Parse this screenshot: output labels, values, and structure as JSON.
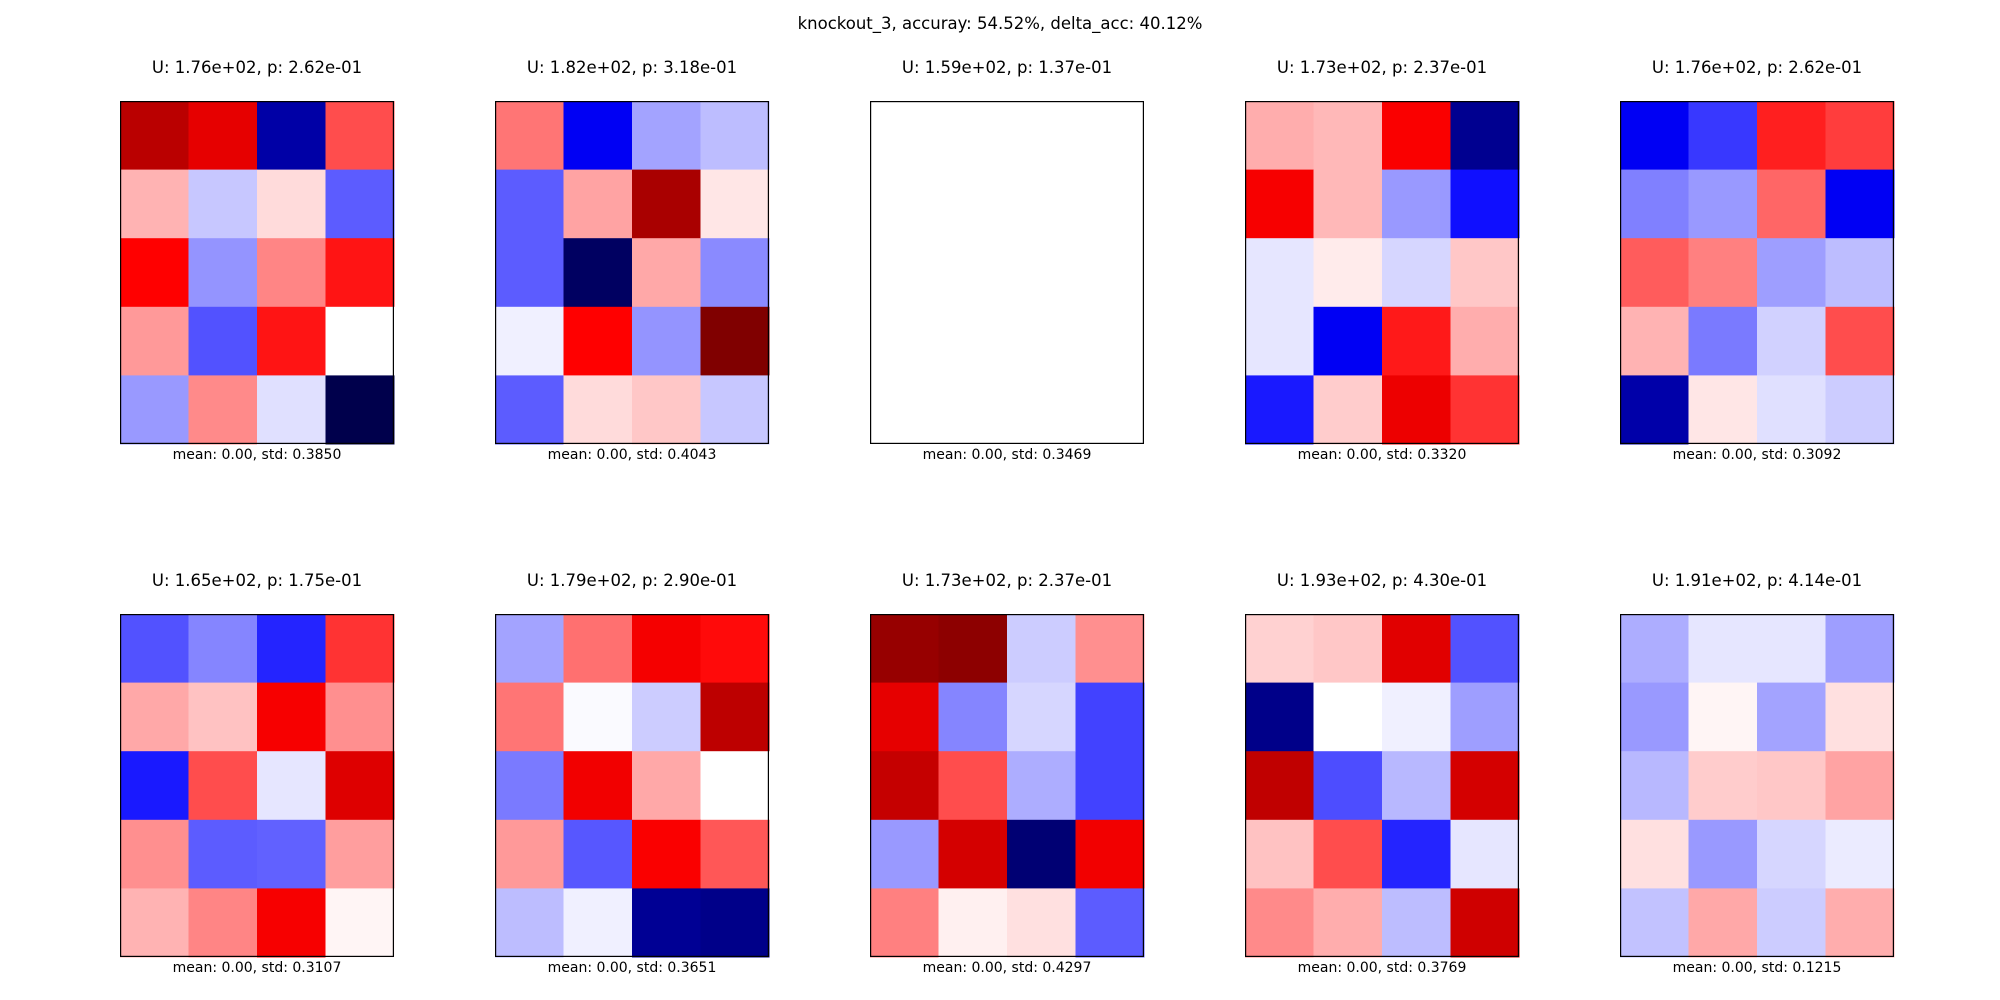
{
  "figure": {
    "suptitle": "knockout_3, accuray: 54.52%, delta_acc: 40.12%"
  },
  "colormap": {
    "name": "seismic",
    "negative": "#0000ff",
    "zero": "#ffffff",
    "positive": "#ff0000"
  },
  "chart_data": [
    {
      "type": "heatmap",
      "title": "U: 1.76e+02, p: 2.62e-01",
      "xlabel": "mean: 0.00, std: 0.3850",
      "rows": 5,
      "cols": 4,
      "values": [
        [
          0.77,
          0.6,
          -0.75,
          0.35
        ],
        [
          0.15,
          -0.11,
          0.07,
          -0.32
        ],
        [
          0.5,
          -0.21,
          0.24,
          0.46
        ],
        [
          0.2,
          -0.34,
          0.46,
          0.0
        ],
        [
          -0.2,
          0.23,
          -0.06,
          -1.0
        ]
      ]
    },
    {
      "type": "heatmap",
      "title": "U: 1.82e+02, p: 3.18e-01",
      "xlabel": "mean: 0.00, std: 0.4043",
      "rows": 5,
      "cols": 4,
      "values": [
        [
          0.27,
          -0.53,
          -0.18,
          -0.13
        ],
        [
          -0.32,
          0.18,
          0.84,
          0.05
        ],
        [
          -0.32,
          -0.94,
          0.17,
          -0.23
        ],
        [
          -0.03,
          0.5,
          -0.21,
          1.0
        ],
        [
          -0.32,
          0.07,
          0.11,
          -0.11
        ]
      ]
    },
    {
      "type": "heatmap",
      "title": "U: 1.59e+02, p: 1.37e-01",
      "xlabel": "mean: 0.00, std: 0.3469",
      "rows": 5,
      "cols": 4,
      "values": [
        [
          0.0,
          0.0,
          0.0,
          0.0
        ],
        [
          0.0,
          0.0,
          0.0,
          0.0
        ],
        [
          0.0,
          0.0,
          0.0,
          0.0
        ],
        [
          0.0,
          0.0,
          0.0,
          0.0
        ],
        [
          0.0,
          0.0,
          0.0,
          0.0
        ]
      ]
    },
    {
      "type": "heatmap",
      "title": "U: 1.73e+02, p: 2.37e-01",
      "xlabel": "mean: 0.00, std: 0.3320",
      "rows": 5,
      "cols": 4,
      "values": [
        [
          0.16,
          0.14,
          0.52,
          -0.81
        ],
        [
          0.53,
          0.14,
          -0.2,
          -0.47
        ],
        [
          -0.05,
          0.04,
          -0.08,
          0.11
        ],
        [
          -0.05,
          -0.53,
          0.45,
          0.16
        ],
        [
          -0.45,
          0.1,
          0.57,
          0.4
        ]
      ]
    },
    {
      "type": "heatmap",
      "title": "U: 1.76e+02, p: 2.62e-01",
      "xlabel": "mean: 0.00, std: 0.3092",
      "rows": 5,
      "cols": 4,
      "values": [
        [
          -0.53,
          -0.39,
          0.44,
          0.38
        ],
        [
          -0.25,
          -0.2,
          0.3,
          -0.53
        ],
        [
          0.32,
          0.25,
          -0.19,
          -0.13
        ],
        [
          0.15,
          -0.26,
          -0.09,
          0.35
        ],
        [
          -0.74,
          0.05,
          -0.06,
          -0.1
        ]
      ]
    },
    {
      "type": "heatmap",
      "title": "U: 1.65e+02, p: 1.75e-01",
      "xlabel": "mean: 0.00, std: 0.3107",
      "rows": 5,
      "cols": 4,
      "values": [
        [
          -0.34,
          -0.24,
          -0.43,
          0.4
        ],
        [
          0.17,
          0.12,
          0.53,
          0.22
        ],
        [
          -0.45,
          0.35,
          -0.05,
          0.63
        ],
        [
          0.22,
          -0.32,
          -0.31,
          0.19
        ],
        [
          0.15,
          0.24,
          0.53,
          0.02
        ]
      ]
    },
    {
      "type": "heatmap",
      "title": "U: 1.79e+02, p: 2.90e-01",
      "xlabel": "mean: 0.00, std: 0.3651",
      "rows": 5,
      "cols": 4,
      "values": [
        [
          -0.18,
          0.28,
          0.54,
          0.48
        ],
        [
          0.27,
          -0.01,
          -0.1,
          0.76
        ],
        [
          -0.26,
          0.55,
          0.17,
          0.0
        ],
        [
          0.2,
          -0.33,
          0.52,
          0.33
        ],
        [
          -0.13,
          -0.03,
          -0.8,
          -0.83
        ]
      ]
    },
    {
      "type": "heatmap",
      "title": "U: 1.73e+02, p: 2.37e-01",
      "xlabel": "mean: 0.00, std: 0.4297",
      "rows": 5,
      "cols": 4,
      "values": [
        [
          0.91,
          0.95,
          -0.1,
          0.22
        ],
        [
          0.6,
          -0.24,
          -0.08,
          -0.37
        ],
        [
          0.73,
          0.35,
          -0.16,
          -0.37
        ],
        [
          -0.2,
          0.67,
          -0.89,
          0.55
        ],
        [
          0.25,
          0.03,
          0.06,
          -0.32
        ]
      ]
    },
    {
      "type": "heatmap",
      "title": "U: 1.93e+02, p: 4.30e-01",
      "xlabel": "mean: 0.00, std: 0.3769",
      "rows": 5,
      "cols": 4,
      "values": [
        [
          0.09,
          0.11,
          0.62,
          -0.34
        ],
        [
          -0.83,
          0.0,
          -0.03,
          -0.19
        ],
        [
          0.75,
          -0.35,
          -0.14,
          0.67
        ],
        [
          0.12,
          0.35,
          -0.43,
          -0.05
        ],
        [
          0.23,
          0.16,
          -0.13,
          0.69
        ]
      ]
    },
    {
      "type": "heatmap",
      "title": "U: 1.91e+02, p: 4.14e-01",
      "xlabel": "mean: 0.00, std: 0.1215",
      "rows": 5,
      "cols": 4,
      "values": [
        [
          -0.16,
          -0.05,
          -0.05,
          -0.19
        ],
        [
          -0.2,
          0.02,
          -0.18,
          0.06
        ],
        [
          -0.14,
          0.1,
          0.11,
          0.18
        ],
        [
          0.06,
          -0.2,
          -0.08,
          -0.04
        ],
        [
          -0.12,
          0.17,
          -0.1,
          0.16
        ]
      ]
    }
  ]
}
